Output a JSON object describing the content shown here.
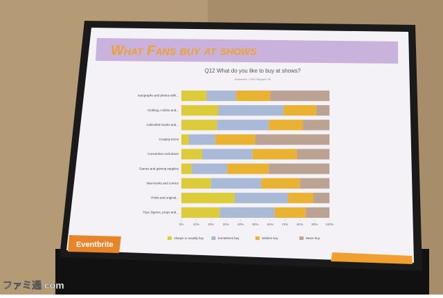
{
  "slide_title": "What Fans buy at shows",
  "logo": "Eventbrite",
  "watermark": "ファミ通.com",
  "chart_data": {
    "type": "stacked-bar-horizontal",
    "title": "Q12 What do you like to buy at shows?",
    "subtitle": "Answered: 1,053    Skipped: 83",
    "categories": [
      "Autographs and photos with...",
      "Clothing, t-shirts and...",
      "Collectible books and...",
      "Cosplay items",
      "Convention exclusives",
      "Games and gaming supplies",
      "New books and comics",
      "Prints and original...",
      "Toys, figures, props and..."
    ],
    "series": [
      {
        "name": "Always or usually buy",
        "color": "#dccb3a",
        "values": [
          17,
          25,
          24,
          5,
          14,
          7,
          20,
          36,
          26
        ]
      },
      {
        "name": "Sometimes buy",
        "color": "#a9b9d6",
        "values": [
          20,
          44,
          35,
          18,
          34,
          24,
          34,
          36,
          37
        ]
      },
      {
        "name": "Seldom buy",
        "color": "#eab232",
        "values": [
          23,
          22,
          23,
          27,
          30,
          28,
          26,
          17,
          21
        ]
      },
      {
        "name": "Never buy",
        "color": "#bba394",
        "values": [
          40,
          9,
          18,
          50,
          22,
          41,
          20,
          11,
          16
        ]
      }
    ],
    "xlim": [
      0,
      100
    ],
    "xticks": [
      {
        "value": 0,
        "label": "0%"
      },
      {
        "value": 10,
        "label": "10%"
      },
      {
        "value": 20,
        "label": "20%"
      },
      {
        "value": 30,
        "label": "30%"
      },
      {
        "value": 40,
        "label": "40%"
      },
      {
        "value": 50,
        "label": "50%"
      },
      {
        "value": 60,
        "label": "60%"
      },
      {
        "value": 70,
        "label": "70%"
      },
      {
        "value": 80,
        "label": "80%"
      },
      {
        "value": 90,
        "label": "90%"
      },
      {
        "value": 100,
        "label": "100%"
      }
    ],
    "legend": "bottom"
  }
}
